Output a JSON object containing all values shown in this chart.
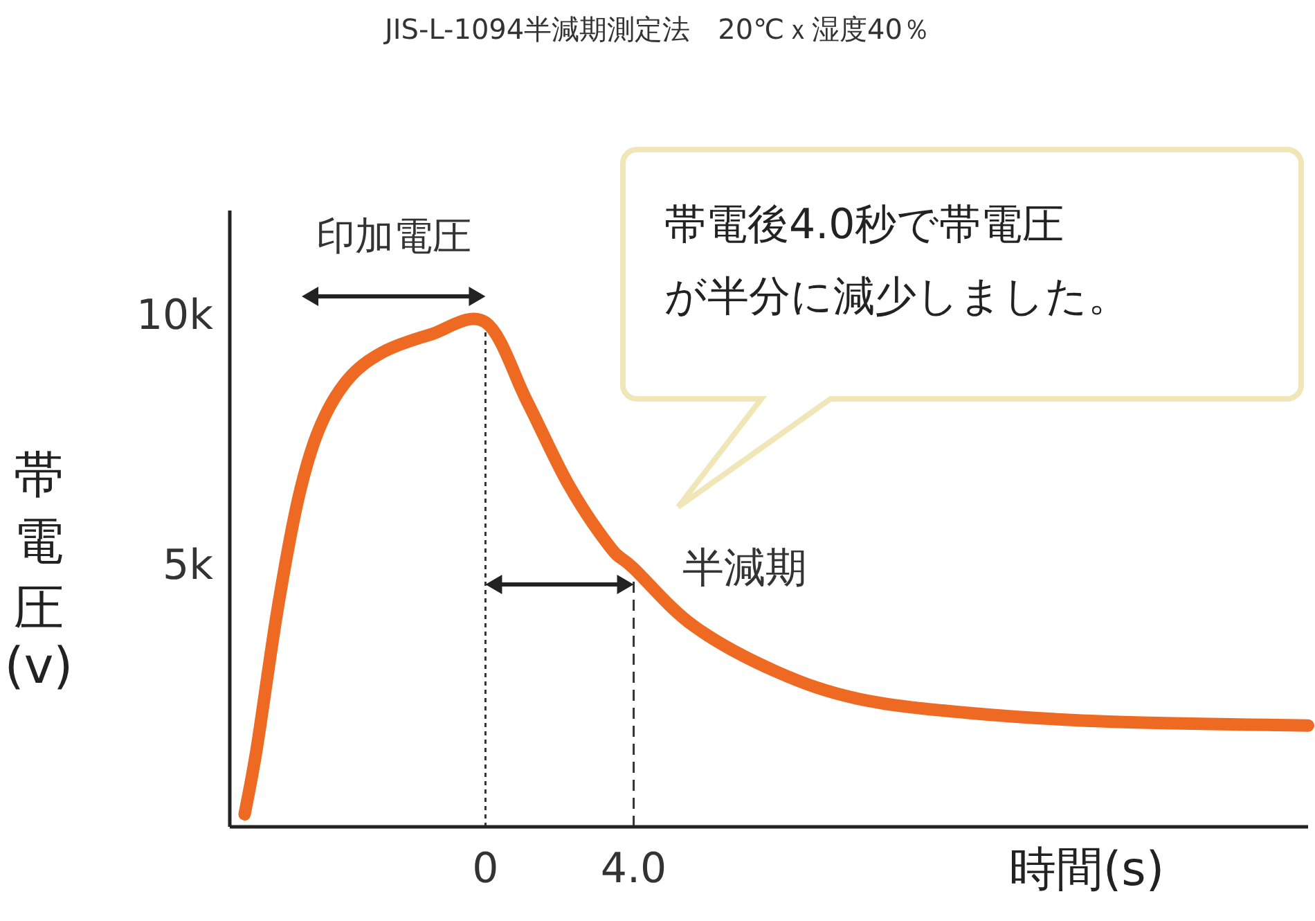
{
  "chart_data": {
    "type": "line",
    "title": "JIS-L-1094半減期測定法　20℃ｘ湿度40％",
    "xlabel": "時間(s)",
    "ylabel": "帯電圧(v)",
    "x": [
      -6.5,
      -6.17,
      -5.61,
      -5.05,
      -4.49,
      -3.74,
      -2.8,
      -1.5,
      0,
      1.12,
      2.24,
      3.36,
      4.0,
      5.61,
      7.85,
      10.09,
      13.08,
      16.82,
      22.2
    ],
    "series": [
      {
        "color": "#ee6a22",
        "values": [
          0,
          1330,
          4110,
          6330,
          7720,
          8690,
          9250,
          9610,
          9860,
          8280,
          6610,
          5360,
          4930,
          3780,
          2860,
          2310,
          2030,
          1860,
          1780
        ]
      }
    ],
    "xlim": [
      -6.9,
      22.2
    ],
    "ylim": [
      -250,
      12100
    ],
    "xticks": [
      0,
      {
        "value": 4,
        "label": "4.0"
      }
    ],
    "yticks": [
      {
        "value": 5000,
        "label": "5k"
      },
      {
        "value": 10000,
        "label": "10k"
      }
    ],
    "ref_lines": [
      {
        "axis": "x",
        "value": 0,
        "line_style": "dotted",
        "color": "#333333"
      },
      {
        "axis": "x",
        "value": 4,
        "line_style": "dashed",
        "color": "#333333"
      }
    ],
    "annotations": [
      "印加電圧",
      "半減期",
      "帯電後4.0秒で帯電圧が半分に減少しました。"
    ],
    "grid": false,
    "line_style": "solid"
  }
}
